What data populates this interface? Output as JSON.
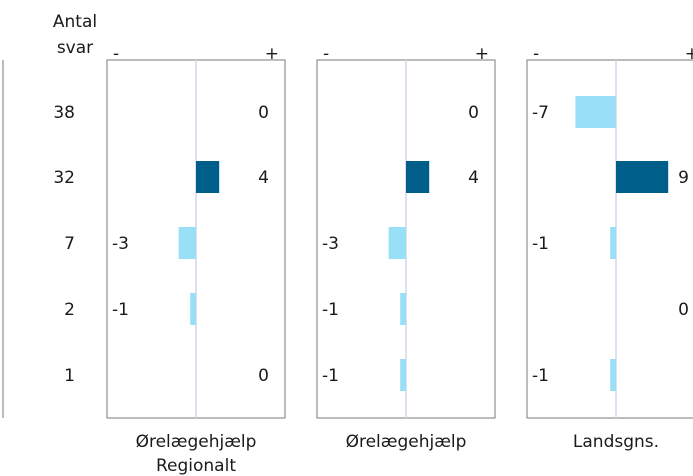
{
  "chart_data": {
    "type": "bar",
    "header": {
      "line1": "Antal",
      "line2": "svar"
    },
    "counts": [
      38,
      32,
      7,
      2,
      1
    ],
    "sign_labels": {
      "minus": "-",
      "plus": "+"
    },
    "colors": {
      "positive": "#005f8a",
      "negative": "#99dff7",
      "axis": "#d3d6ea",
      "frame": "#7a7a7a"
    },
    "panels": [
      {
        "caption": [
          "Ørelægehjælp",
          "Regionalt"
        ],
        "values": [
          0,
          4,
          -3,
          -1,
          0
        ],
        "range": [
          -10,
          10
        ]
      },
      {
        "caption": [
          "Ørelægehjælp"
        ],
        "values": [
          0,
          4,
          -3,
          -1,
          -1
        ],
        "range": [
          -10,
          10
        ]
      },
      {
        "caption": [
          "Landsgns."
        ],
        "values": [
          -7,
          9,
          -1,
          0,
          -1
        ],
        "range": [
          -10,
          10
        ]
      }
    ]
  }
}
